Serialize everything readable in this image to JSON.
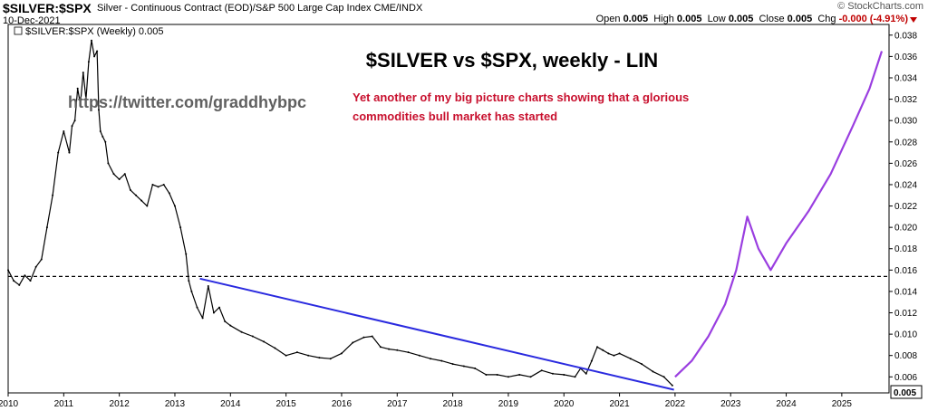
{
  "header": {
    "symbol": "$SILVER:$SPX",
    "description": "Silver - Continuous Contract (EOD)/S&P 500 Large Cap Index  CME/INDX",
    "date": "10-Dec-2021",
    "brand": "© StockCharts.com",
    "open_label": "Open",
    "open": "0.005",
    "high_label": "High",
    "high": "0.005",
    "low_label": "Low",
    "low": "0.005",
    "close_label": "Close",
    "close": "0.005",
    "chg_label": "Chg",
    "chg": "-0.000 (-4.91%)"
  },
  "colors": {
    "price": "#000000",
    "trendline": "#2a2adf",
    "projection": "#9a3ee0",
    "annotation": "#c8102e",
    "watermark": "#606060"
  },
  "chart_data": {
    "type": "line",
    "legend": "$SILVER:$SPX (Weekly) 0.005",
    "title": "$SILVER vs $SPX, weekly - LIN",
    "watermark": "https://twitter.com/graddhybpc",
    "annotation": "Yet another of my big picture charts showing that a glorious commodities bull market has started",
    "annotation_lines": [
      "Yet another of my big picture charts showing that a glorious",
      "commodities bull market has started"
    ],
    "last_value_label": "0.005",
    "x_ticks": [
      "2010",
      "2011",
      "2012",
      "2013",
      "2014",
      "2015",
      "2016",
      "2017",
      "2018",
      "2019",
      "2020",
      "2021",
      "2022",
      "2023",
      "2024",
      "2025"
    ],
    "y_ticks": [
      "0.006",
      "0.008",
      "0.010",
      "0.012",
      "0.014",
      "0.016",
      "0.018",
      "0.020",
      "0.022",
      "0.024",
      "0.026",
      "0.028",
      "0.030",
      "0.032",
      "0.034",
      "0.036",
      "0.038"
    ],
    "xlim": [
      2010.0,
      2025.85
    ],
    "ylim": [
      0.0045,
      0.039
    ],
    "scale": "linear",
    "grid": false,
    "series": [
      {
        "style": "price",
        "x": [
          2010.0,
          2010.1,
          2010.2,
          2010.3,
          2010.4,
          2010.5,
          2010.6,
          2010.7,
          2010.8,
          2010.9,
          2011.0,
          2011.1,
          2011.15,
          2011.2,
          2011.25,
          2011.3,
          2011.35,
          2011.4,
          2011.45,
          2011.5,
          2011.55,
          2011.6,
          2011.63,
          2011.66,
          2011.7,
          2011.75,
          2011.8,
          2011.9,
          2012.0,
          2012.1,
          2012.2,
          2012.3,
          2012.4,
          2012.5,
          2012.6,
          2012.7,
          2012.8,
          2012.9,
          2013.0,
          2013.1,
          2013.2,
          2013.25,
          2013.3,
          2013.4,
          2013.5,
          2013.6,
          2013.7,
          2013.8,
          2013.9,
          2014.0,
          2014.2,
          2014.4,
          2014.6,
          2014.8,
          2015.0,
          2015.2,
          2015.4,
          2015.6,
          2015.8,
          2016.0,
          2016.2,
          2016.4,
          2016.55,
          2016.7,
          2016.85,
          2017.0,
          2017.2,
          2017.4,
          2017.6,
          2017.8,
          2018.0,
          2018.2,
          2018.4,
          2018.6,
          2018.8,
          2019.0,
          2019.2,
          2019.4,
          2019.6,
          2019.8,
          2020.0,
          2020.2,
          2020.3,
          2020.4,
          2020.5,
          2020.6,
          2020.7,
          2020.8,
          2020.9,
          2021.0,
          2021.2,
          2021.4,
          2021.6,
          2021.8,
          2021.95
        ],
        "y": [
          0.016,
          0.015,
          0.0146,
          0.0155,
          0.015,
          0.0163,
          0.017,
          0.02,
          0.023,
          0.027,
          0.029,
          0.027,
          0.0295,
          0.03,
          0.033,
          0.0315,
          0.0345,
          0.032,
          0.0355,
          0.0375,
          0.036,
          0.0365,
          0.031,
          0.029,
          0.0285,
          0.028,
          0.026,
          0.025,
          0.0245,
          0.025,
          0.0235,
          0.023,
          0.0225,
          0.022,
          0.024,
          0.0238,
          0.024,
          0.0232,
          0.022,
          0.02,
          0.0175,
          0.015,
          0.014,
          0.0125,
          0.0115,
          0.0145,
          0.012,
          0.0125,
          0.0112,
          0.0108,
          0.0102,
          0.0098,
          0.0093,
          0.0087,
          0.008,
          0.0083,
          0.008,
          0.0078,
          0.0077,
          0.0082,
          0.0092,
          0.0097,
          0.0098,
          0.0088,
          0.0086,
          0.0085,
          0.0083,
          0.008,
          0.0077,
          0.0075,
          0.0072,
          0.007,
          0.0068,
          0.0062,
          0.0062,
          0.006,
          0.0062,
          0.006,
          0.0066,
          0.0063,
          0.0062,
          0.006,
          0.0068,
          0.0063,
          0.0075,
          0.0088,
          0.0085,
          0.0082,
          0.008,
          0.0082,
          0.0077,
          0.0072,
          0.0065,
          0.006,
          0.0052
        ]
      },
      {
        "style": "horizontal",
        "x": [
          2010.0,
          2025.85
        ],
        "y": [
          0.0154,
          0.0154
        ]
      },
      {
        "style": "trendline",
        "x": [
          2013.45,
          2021.98
        ],
        "y": [
          0.0152,
          0.0048
        ]
      },
      {
        "style": "projection",
        "x": [
          2022.0,
          2022.3,
          2022.6,
          2022.9,
          2023.1,
          2023.3,
          2023.5,
          2023.72,
          2024.0,
          2024.4,
          2024.8,
          2025.2,
          2025.5,
          2025.72
        ],
        "y": [
          0.006,
          0.0075,
          0.0098,
          0.0128,
          0.016,
          0.021,
          0.018,
          0.016,
          0.0185,
          0.0215,
          0.025,
          0.0295,
          0.033,
          0.0365
        ]
      }
    ]
  }
}
